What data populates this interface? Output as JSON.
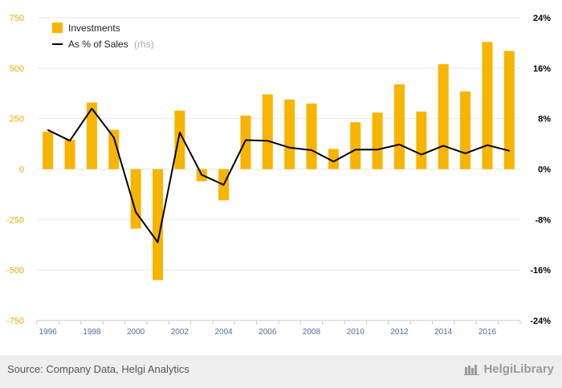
{
  "chart_data": {
    "type": "bar+line",
    "categories": [
      "1996",
      "1997",
      "1998",
      "1999",
      "2000",
      "2001",
      "2002",
      "2003",
      "2004",
      "2005",
      "2006",
      "2007",
      "2008",
      "2009",
      "2010",
      "2011",
      "2012",
      "2013",
      "2014",
      "2015",
      "2016",
      "2017"
    ],
    "series": [
      {
        "name": "Investments",
        "type": "bar",
        "axis": "left",
        "color": "#f7b400",
        "values": [
          185,
          145,
          330,
          195,
          -295,
          -550,
          290,
          -60,
          -155,
          265,
          370,
          345,
          325,
          100,
          232,
          280,
          420,
          285,
          520,
          385,
          630,
          585
        ]
      },
      {
        "name": "As % of Sales",
        "axis_note": "(rhs)",
        "type": "line",
        "axis": "right",
        "color": "#000000",
        "values": [
          6.2,
          4.5,
          9.6,
          5.0,
          -6.8,
          -11.6,
          5.8,
          -0.9,
          -2.5,
          4.6,
          4.5,
          3.4,
          3.0,
          1.2,
          3.1,
          3.1,
          3.9,
          2.3,
          3.7,
          2.5,
          3.8,
          2.9
        ]
      }
    ],
    "left_axis": {
      "min": -750,
      "max": 750,
      "ticks": [
        -750,
        -500,
        -250,
        0,
        250,
        500,
        750
      ],
      "tick_labels": [
        "-750",
        "-500",
        "-250",
        "0",
        "250",
        "500",
        "750"
      ]
    },
    "right_axis": {
      "min": -24,
      "max": 24,
      "ticks": [
        -24,
        -16,
        -8,
        0,
        8,
        16,
        24
      ],
      "tick_labels": [
        "-24%",
        "-16%",
        "-8%",
        "0%",
        "8%",
        "16%",
        "24%"
      ]
    },
    "x_tick_labels": [
      "1996",
      "1998",
      "2000",
      "2002",
      "2004",
      "2006",
      "2008",
      "2010",
      "2012",
      "2014",
      "2016"
    ],
    "legend_position": "top-left",
    "grid": true
  },
  "footer": {
    "source": "Source: Company Data, Helgi Analytics",
    "brand": "HelgiLibrary"
  }
}
